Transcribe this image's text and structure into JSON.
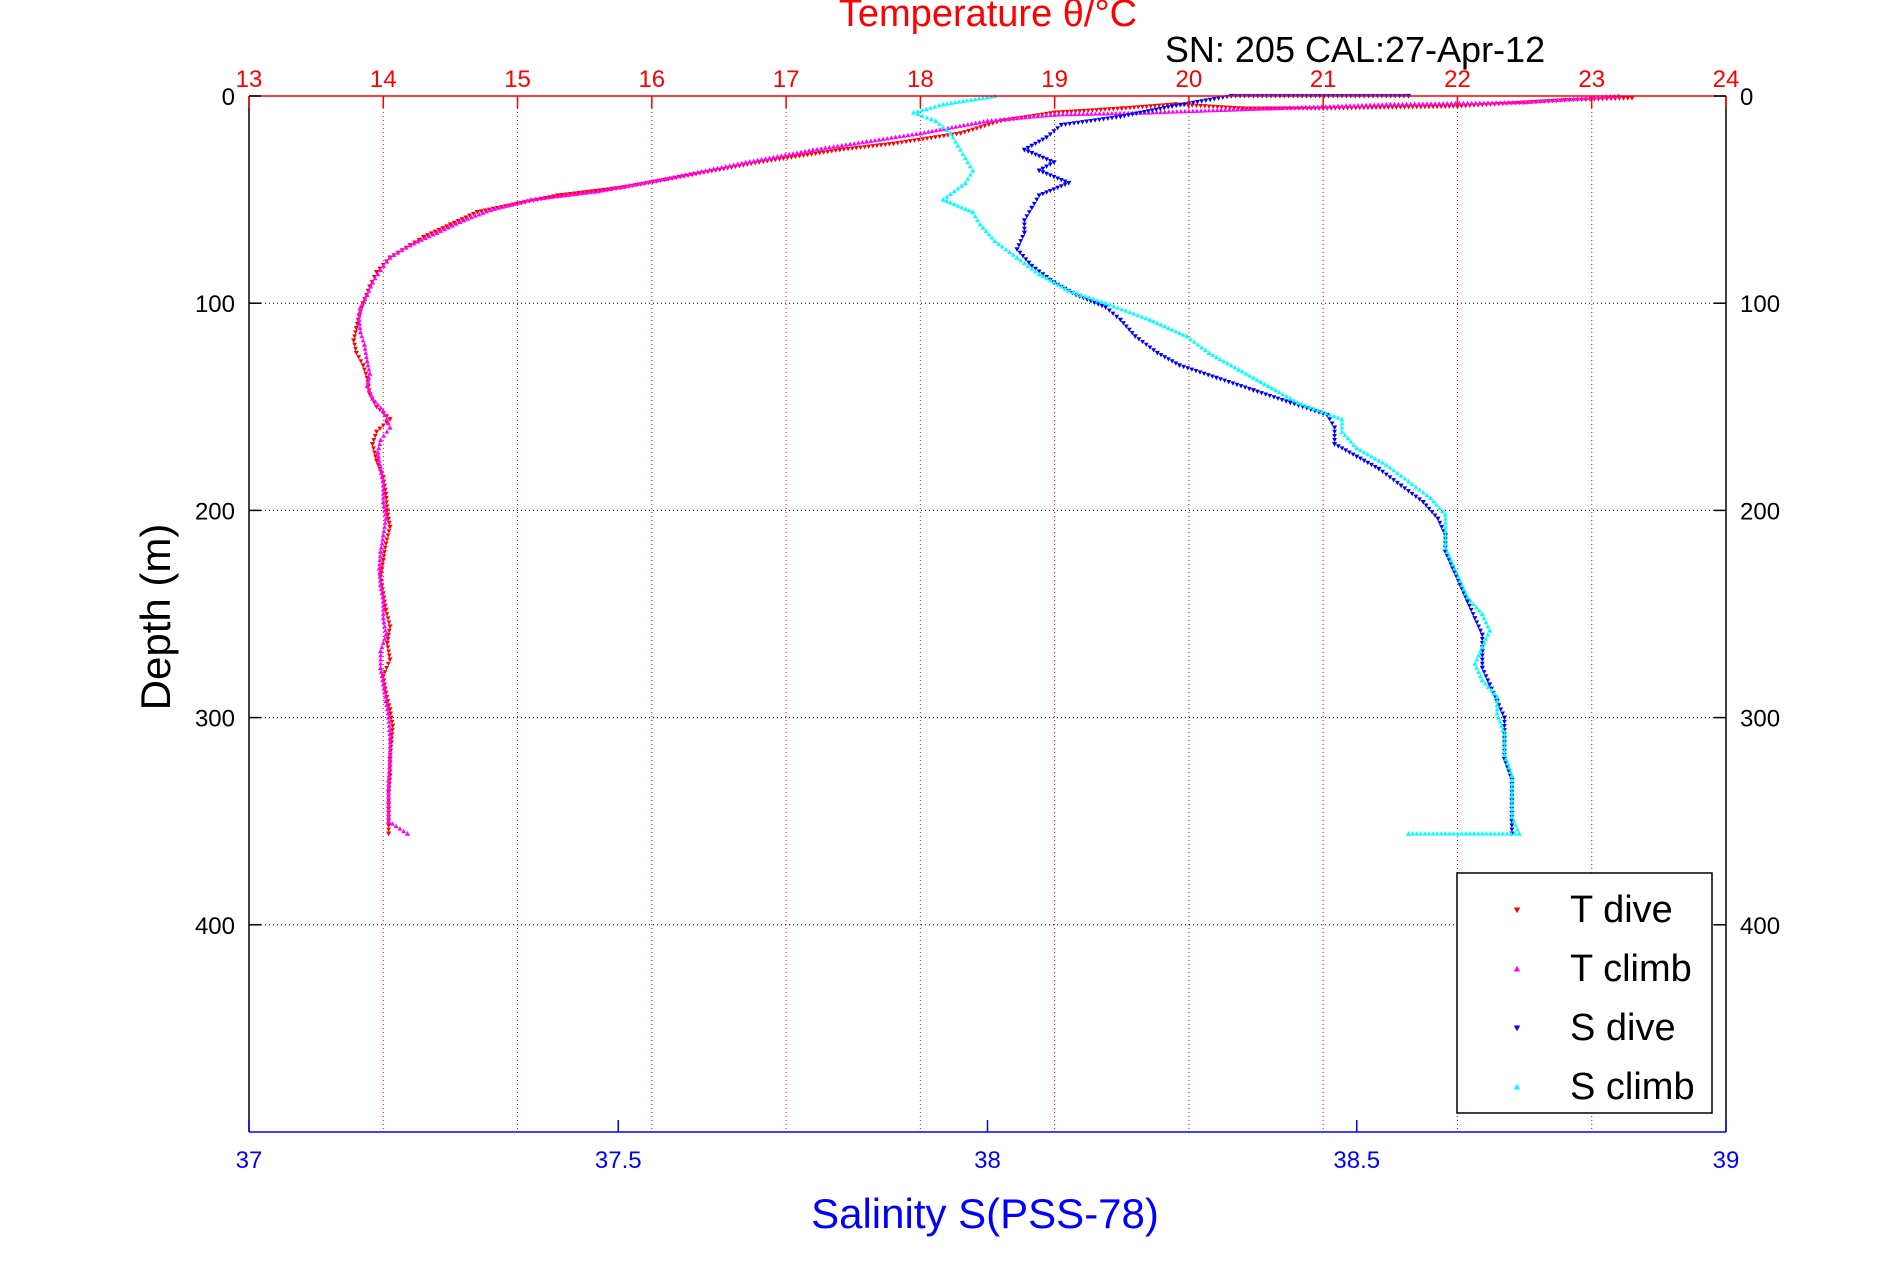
{
  "chart_data": {
    "type": "scatter",
    "title": "Temperature θ/°C",
    "subtitle": "SN: 205  CAL:27-Apr-12",
    "top_axis": {
      "label": "Temperature θ/°C",
      "range": [
        13,
        24
      ],
      "ticks": [
        13,
        14,
        15,
        16,
        17,
        18,
        19,
        20,
        21,
        22,
        23,
        24
      ],
      "color": "#ff0000"
    },
    "bottom_axis": {
      "label": "Salinity S(PSS-78)",
      "range": [
        37,
        39
      ],
      "ticks": [
        37,
        37.5,
        38,
        38.5,
        39
      ],
      "tick_labels": [
        "37",
        "37.5",
        "38",
        "38.5",
        "39"
      ],
      "color": "#0000ff"
    },
    "y_axis": {
      "label": "Depth (m)",
      "range": [
        0,
        500
      ],
      "inverted": true,
      "ticks": [
        0,
        100,
        200,
        300,
        400
      ],
      "color": "#000000"
    },
    "grid": true,
    "legend": {
      "placement": "bottom-right",
      "entries": [
        "T dive",
        "T climb",
        "S dive",
        "S climb"
      ]
    },
    "series": [
      {
        "name": "T dive",
        "axis": "temperature",
        "color": "#ff0000",
        "marker": "triangle-down",
        "points": [
          [
            23.3,
            1
          ],
          [
            22.8,
            2
          ],
          [
            22.0,
            5
          ],
          [
            21.0,
            6
          ],
          [
            20.4,
            6
          ],
          [
            19.9,
            4
          ],
          [
            19.5,
            6
          ],
          [
            19.0,
            8
          ],
          [
            18.6,
            12
          ],
          [
            18.3,
            18
          ],
          [
            17.8,
            23
          ],
          [
            17.4,
            26
          ],
          [
            16.8,
            32
          ],
          [
            16.3,
            38
          ],
          [
            15.8,
            44
          ],
          [
            15.3,
            48
          ],
          [
            15.0,
            52
          ],
          [
            14.7,
            56
          ],
          [
            14.5,
            62
          ],
          [
            14.3,
            68
          ],
          [
            14.2,
            72
          ],
          [
            14.05,
            78
          ],
          [
            13.95,
            85
          ],
          [
            13.9,
            92
          ],
          [
            13.85,
            100
          ],
          [
            13.82,
            106
          ],
          [
            13.8,
            112
          ],
          [
            13.78,
            118
          ],
          [
            13.8,
            124
          ],
          [
            13.85,
            130
          ],
          [
            13.88,
            136
          ],
          [
            13.9,
            144
          ],
          [
            13.95,
            150
          ],
          [
            14.05,
            156
          ],
          [
            13.95,
            162
          ],
          [
            13.92,
            168
          ],
          [
            13.95,
            176
          ],
          [
            14.0,
            184
          ],
          [
            14.02,
            192
          ],
          [
            14.03,
            200
          ],
          [
            14.05,
            208
          ],
          [
            14.02,
            216
          ],
          [
            14.0,
            224
          ],
          [
            13.98,
            232
          ],
          [
            14.0,
            240
          ],
          [
            14.02,
            248
          ],
          [
            14.05,
            256
          ],
          [
            14.03,
            264
          ],
          [
            14.05,
            272
          ],
          [
            14.0,
            280
          ],
          [
            14.02,
            288
          ],
          [
            14.05,
            296
          ],
          [
            14.07,
            304
          ],
          [
            14.06,
            312
          ],
          [
            14.05,
            320
          ],
          [
            14.05,
            328
          ],
          [
            14.04,
            336
          ],
          [
            14.04,
            344
          ],
          [
            14.04,
            352
          ],
          [
            14.04,
            356
          ]
        ]
      },
      {
        "name": "T climb",
        "axis": "temperature",
        "color": "#ff00ff",
        "marker": "triangle-up",
        "points": [
          [
            23.2,
            0
          ],
          [
            22.5,
            3
          ],
          [
            21.5,
            4
          ],
          [
            20.6,
            6
          ],
          [
            19.7,
            8
          ],
          [
            19.0,
            9
          ],
          [
            18.5,
            12
          ],
          [
            18.0,
            18
          ],
          [
            17.6,
            22
          ],
          [
            17.2,
            26
          ],
          [
            16.7,
            32
          ],
          [
            16.1,
            40
          ],
          [
            15.6,
            46
          ],
          [
            15.1,
            50
          ],
          [
            14.8,
            55
          ],
          [
            14.6,
            60
          ],
          [
            14.4,
            66
          ],
          [
            14.2,
            72
          ],
          [
            14.05,
            78
          ],
          [
            13.98,
            84
          ],
          [
            13.92,
            90
          ],
          [
            13.88,
            96
          ],
          [
            13.83,
            102
          ],
          [
            13.82,
            108
          ],
          [
            13.83,
            114
          ],
          [
            13.86,
            120
          ],
          [
            13.88,
            128
          ],
          [
            13.9,
            134
          ],
          [
            13.88,
            140
          ],
          [
            13.92,
            146
          ],
          [
            14.0,
            152
          ],
          [
            14.05,
            160
          ],
          [
            13.98,
            166
          ],
          [
            13.96,
            172
          ],
          [
            13.98,
            180
          ],
          [
            14.0,
            188
          ],
          [
            14.0,
            196
          ],
          [
            14.02,
            204
          ],
          [
            14.0,
            212
          ],
          [
            13.98,
            220
          ],
          [
            13.97,
            228
          ],
          [
            13.98,
            236
          ],
          [
            14.0,
            244
          ],
          [
            14.0,
            252
          ],
          [
            14.02,
            260
          ],
          [
            13.98,
            268
          ],
          [
            13.98,
            276
          ],
          [
            14.0,
            284
          ],
          [
            14.02,
            292
          ],
          [
            14.04,
            300
          ],
          [
            14.05,
            310
          ],
          [
            14.05,
            320
          ],
          [
            14.04,
            330
          ],
          [
            14.04,
            340
          ],
          [
            14.04,
            350
          ],
          [
            14.18,
            356
          ]
        ]
      },
      {
        "name": "S dive",
        "axis": "salinity",
        "color": "#0000ff",
        "marker": "triangle-down",
        "points": [
          [
            38.57,
            0
          ],
          [
            38.33,
            0
          ],
          [
            38.25,
            5
          ],
          [
            38.18,
            10
          ],
          [
            38.1,
            14
          ],
          [
            38.08,
            20
          ],
          [
            38.05,
            26
          ],
          [
            38.09,
            32
          ],
          [
            38.07,
            36
          ],
          [
            38.11,
            42
          ],
          [
            38.07,
            48
          ],
          [
            38.06,
            54
          ],
          [
            38.05,
            60
          ],
          [
            38.05,
            66
          ],
          [
            38.04,
            74
          ],
          [
            38.06,
            82
          ],
          [
            38.09,
            90
          ],
          [
            38.12,
            96
          ],
          [
            38.16,
            102
          ],
          [
            38.18,
            108
          ],
          [
            38.2,
            116
          ],
          [
            38.23,
            124
          ],
          [
            38.26,
            130
          ],
          [
            38.31,
            136
          ],
          [
            38.36,
            142
          ],
          [
            38.41,
            148
          ],
          [
            38.46,
            154
          ],
          [
            38.47,
            160
          ],
          [
            38.47,
            168
          ],
          [
            38.5,
            174
          ],
          [
            38.53,
            180
          ],
          [
            38.56,
            188
          ],
          [
            38.59,
            196
          ],
          [
            38.61,
            204
          ],
          [
            38.62,
            212
          ],
          [
            38.62,
            220
          ],
          [
            38.63,
            228
          ],
          [
            38.64,
            236
          ],
          [
            38.65,
            244
          ],
          [
            38.66,
            252
          ],
          [
            38.67,
            260
          ],
          [
            38.67,
            268
          ],
          [
            38.67,
            276
          ],
          [
            38.68,
            284
          ],
          [
            38.69,
            292
          ],
          [
            38.7,
            300
          ],
          [
            38.7,
            310
          ],
          [
            38.7,
            320
          ],
          [
            38.71,
            330
          ],
          [
            38.71,
            340
          ],
          [
            38.71,
            350
          ],
          [
            38.71,
            356
          ]
        ]
      },
      {
        "name": "S climb",
        "axis": "salinity",
        "color": "#00ffff",
        "marker": "triangle-up",
        "points": [
          [
            38.01,
            0
          ],
          [
            37.94,
            4
          ],
          [
            37.9,
            8
          ],
          [
            37.93,
            12
          ],
          [
            37.95,
            18
          ],
          [
            37.96,
            24
          ],
          [
            37.97,
            30
          ],
          [
            37.98,
            36
          ],
          [
            37.97,
            42
          ],
          [
            37.94,
            50
          ],
          [
            37.98,
            56
          ],
          [
            37.99,
            62
          ],
          [
            38.01,
            70
          ],
          [
            38.04,
            78
          ],
          [
            38.07,
            86
          ],
          [
            38.11,
            94
          ],
          [
            38.16,
            100
          ],
          [
            38.22,
            108
          ],
          [
            38.27,
            116
          ],
          [
            38.3,
            124
          ],
          [
            38.34,
            132
          ],
          [
            38.38,
            140
          ],
          [
            38.42,
            148
          ],
          [
            38.48,
            156
          ],
          [
            38.48,
            162
          ],
          [
            38.5,
            170
          ],
          [
            38.54,
            178
          ],
          [
            38.57,
            186
          ],
          [
            38.6,
            194
          ],
          [
            38.62,
            202
          ],
          [
            38.62,
            210
          ],
          [
            38.62,
            218
          ],
          [
            38.63,
            226
          ],
          [
            38.64,
            234
          ],
          [
            38.65,
            242
          ],
          [
            38.67,
            250
          ],
          [
            38.68,
            258
          ],
          [
            38.67,
            266
          ],
          [
            38.66,
            274
          ],
          [
            38.67,
            282
          ],
          [
            38.69,
            290
          ],
          [
            38.69,
            298
          ],
          [
            38.7,
            308
          ],
          [
            38.7,
            318
          ],
          [
            38.71,
            328
          ],
          [
            38.71,
            338
          ],
          [
            38.71,
            348
          ],
          [
            38.72,
            356
          ],
          [
            38.57,
            356
          ]
        ]
      }
    ]
  }
}
